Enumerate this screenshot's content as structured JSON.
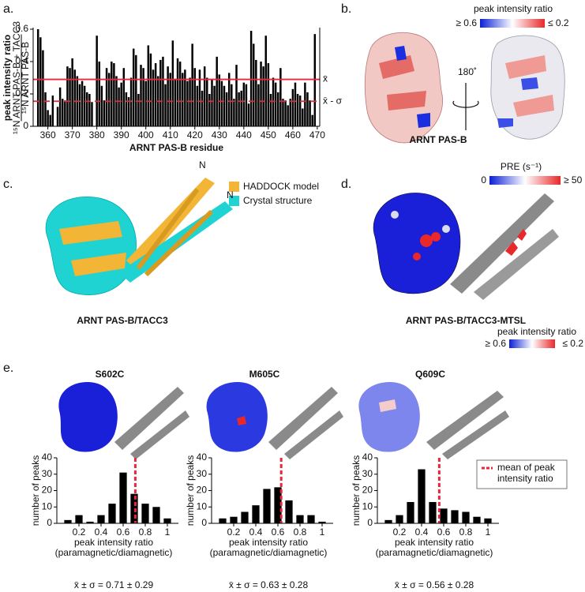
{
  "panel_labels": [
    "a.",
    "b.",
    "c.",
    "d.",
    "e."
  ],
  "chart_data": [
    {
      "type": "bar",
      "xlabel": "ARNT PAS-B residue",
      "ylabel": "peak intensity ratio",
      "ylabel_numerator": "¹⁵N ARNT PAS-B + TACC3",
      "ylabel_denominator": "¹⁵N ARNT PAS-B",
      "color": "#000000",
      "x": [
        356,
        357,
        358,
        359,
        360,
        361,
        362,
        363,
        364,
        365,
        366,
        367,
        368,
        369,
        370,
        371,
        372,
        373,
        374,
        375,
        376,
        377,
        378,
        379,
        380,
        381,
        382,
        383,
        384,
        385,
        386,
        387,
        388,
        389,
        390,
        391,
        392,
        393,
        394,
        395,
        396,
        397,
        398,
        399,
        400,
        401,
        402,
        403,
        404,
        405,
        406,
        407,
        408,
        409,
        410,
        411,
        412,
        413,
        414,
        415,
        416,
        417,
        418,
        419,
        420,
        421,
        422,
        423,
        424,
        425,
        426,
        427,
        428,
        429,
        430,
        431,
        432,
        433,
        434,
        435,
        436,
        437,
        438,
        439,
        440,
        441,
        442,
        443,
        444,
        445,
        446,
        447,
        448,
        449,
        450,
        451,
        452,
        453,
        454,
        455,
        456,
        457,
        458,
        459,
        460,
        461,
        462,
        463,
        464,
        465,
        466,
        467,
        468,
        469
      ],
      "values": [
        0.6,
        0.55,
        0.47,
        0.21,
        0.1,
        0.07,
        0.19,
        null,
        0.12,
        0.24,
        0.17,
        0.16,
        0.37,
        0.36,
        0.42,
        0.35,
        0.31,
        0.26,
        0.28,
        0.25,
        0.21,
        0.2,
        0.15,
        null,
        0.56,
        0.4,
        0.25,
        0.16,
        0.36,
        0.33,
        0.4,
        0.39,
        0.31,
        0.24,
        0.27,
        0.36,
        0.21,
        0.18,
        0.3,
        0.48,
        0.44,
        0.2,
        0.38,
        0.36,
        0.28,
        0.5,
        0.45,
        0.35,
        0.39,
        0.31,
        0.41,
        0.43,
        0.26,
        0.37,
        0.33,
        0.53,
        0.29,
        0.42,
        0.4,
        0.33,
        0.35,
        0.28,
        0.3,
        0.51,
        0.36,
        0.25,
        0.35,
        0.22,
        0.37,
        0.3,
        0.2,
        0.29,
        0.25,
        0.43,
        0.32,
        0.28,
        0.25,
        0.21,
        0.33,
        0.26,
        0.17,
        0.38,
        0.21,
        0.22,
        0.27,
        0.26,
        0.14,
        0.59,
        0.51,
        0.41,
        0.26,
        0.4,
        0.37,
        0.56,
        0.39,
        0.2,
        0.3,
        0.27,
        0.21,
        0.36,
        0.17,
        0.16,
        0.13,
        0.17,
        0.23,
        0.27,
        0.2,
        0.19,
        0.11,
        0.27,
        0.21,
        0.16,
        0.07,
        0.57
      ],
      "xlim": [
        354,
        471
      ],
      "xticks": [
        360,
        370,
        380,
        390,
        400,
        410,
        420,
        430,
        440,
        450,
        460,
        470
      ],
      "ylim": [
        0,
        0.6
      ],
      "yticks": [
        0,
        0.2,
        0.4,
        0.6
      ],
      "hlines": [
        {
          "value": 0.29,
          "label": "x̄",
          "style": "solid",
          "color": "#e8283a"
        },
        {
          "value": 0.155,
          "label": "x̄ - σ",
          "style": "dashed",
          "color": "#e8283a"
        }
      ]
    },
    {
      "type": "histogram",
      "title": "S602C",
      "xlabel": [
        "peak intensity ratio",
        "(paramagnetic/diamagnetic)"
      ],
      "ylabel": "number of peaks",
      "bins": [
        0.05,
        0.15,
        0.25,
        0.35,
        0.45,
        0.55,
        0.65,
        0.75,
        0.85,
        0.95,
        1.05
      ],
      "values": [
        2,
        5,
        1,
        5,
        12,
        31,
        18,
        12,
        10,
        3
      ],
      "color": "#000000",
      "xlim": [
        0,
        1.1
      ],
      "xticks": [
        0.2,
        0.4,
        0.6,
        0.8,
        1.0
      ],
      "ylim": [
        0,
        40
      ],
      "yticks": [
        0,
        10,
        20,
        30,
        40
      ],
      "mean": 0.71,
      "mean_color": "#e8283a",
      "stat_label": "x̄ ± σ = 0.71 ± 0.29"
    },
    {
      "type": "histogram",
      "title": "M605C",
      "xlabel": [
        "peak intensity ratio",
        "(paramagnetic/diamagnetic)"
      ],
      "ylabel": "number of peaks",
      "bins": [
        0.05,
        0.15,
        0.25,
        0.35,
        0.45,
        0.55,
        0.65,
        0.75,
        0.85,
        0.95,
        1.05
      ],
      "values": [
        3,
        4,
        7,
        11,
        21,
        22,
        14,
        5,
        5,
        1
      ],
      "color": "#000000",
      "xlim": [
        0,
        1.1
      ],
      "xticks": [
        0.2,
        0.4,
        0.6,
        0.8,
        1.0
      ],
      "ylim": [
        0,
        40
      ],
      "yticks": [
        0,
        10,
        20,
        30,
        40
      ],
      "mean": 0.63,
      "mean_color": "#e8283a",
      "stat_label": "x̄ ± σ = 0.63 ± 0.28"
    },
    {
      "type": "histogram",
      "title": "Q609C",
      "xlabel": [
        "peak intensity ratio",
        "(paramagnetic/diamagnetic)"
      ],
      "ylabel": "number of peaks",
      "bins": [
        0.05,
        0.15,
        0.25,
        0.35,
        0.45,
        0.55,
        0.65,
        0.75,
        0.85,
        0.95,
        1.05
      ],
      "values": [
        2,
        5,
        13,
        33,
        13,
        9,
        8,
        7,
        4,
        3
      ],
      "color": "#000000",
      "xlim": [
        0,
        1.1
      ],
      "xticks": [
        0.2,
        0.4,
        0.6,
        0.8,
        1.0
      ],
      "ylim": [
        0,
        40
      ],
      "yticks": [
        0,
        10,
        20,
        30,
        40
      ],
      "mean": 0.56,
      "mean_color": "#e8283a",
      "stat_label": "x̄ ± σ = 0.56 ± 0.28",
      "legend": [
        "mean of peak",
        "intensity ratio"
      ]
    }
  ],
  "structures": {
    "b": {
      "scale_title": "peak intensity ratio",
      "scale_low": "≥ 0.6",
      "scale_high": "≤ 0.2",
      "rotation": "180˚",
      "caption": "ARNT PAS-B"
    },
    "c": {
      "legend": [
        "HADDOCK model",
        "Crystal structure"
      ],
      "n_labels": [
        "N",
        "N"
      ],
      "caption": "ARNT PAS-B/TACC3"
    },
    "d": {
      "pre_title": "PRE (s⁻¹)",
      "pre_low": "0",
      "pre_high": "≥ 50",
      "caption": "ARNT PAS-B/TACC3-MTSL",
      "scale_title": "peak intensity ratio",
      "scale_low": "≥ 0.6",
      "scale_high": "≤ 0.2"
    }
  }
}
